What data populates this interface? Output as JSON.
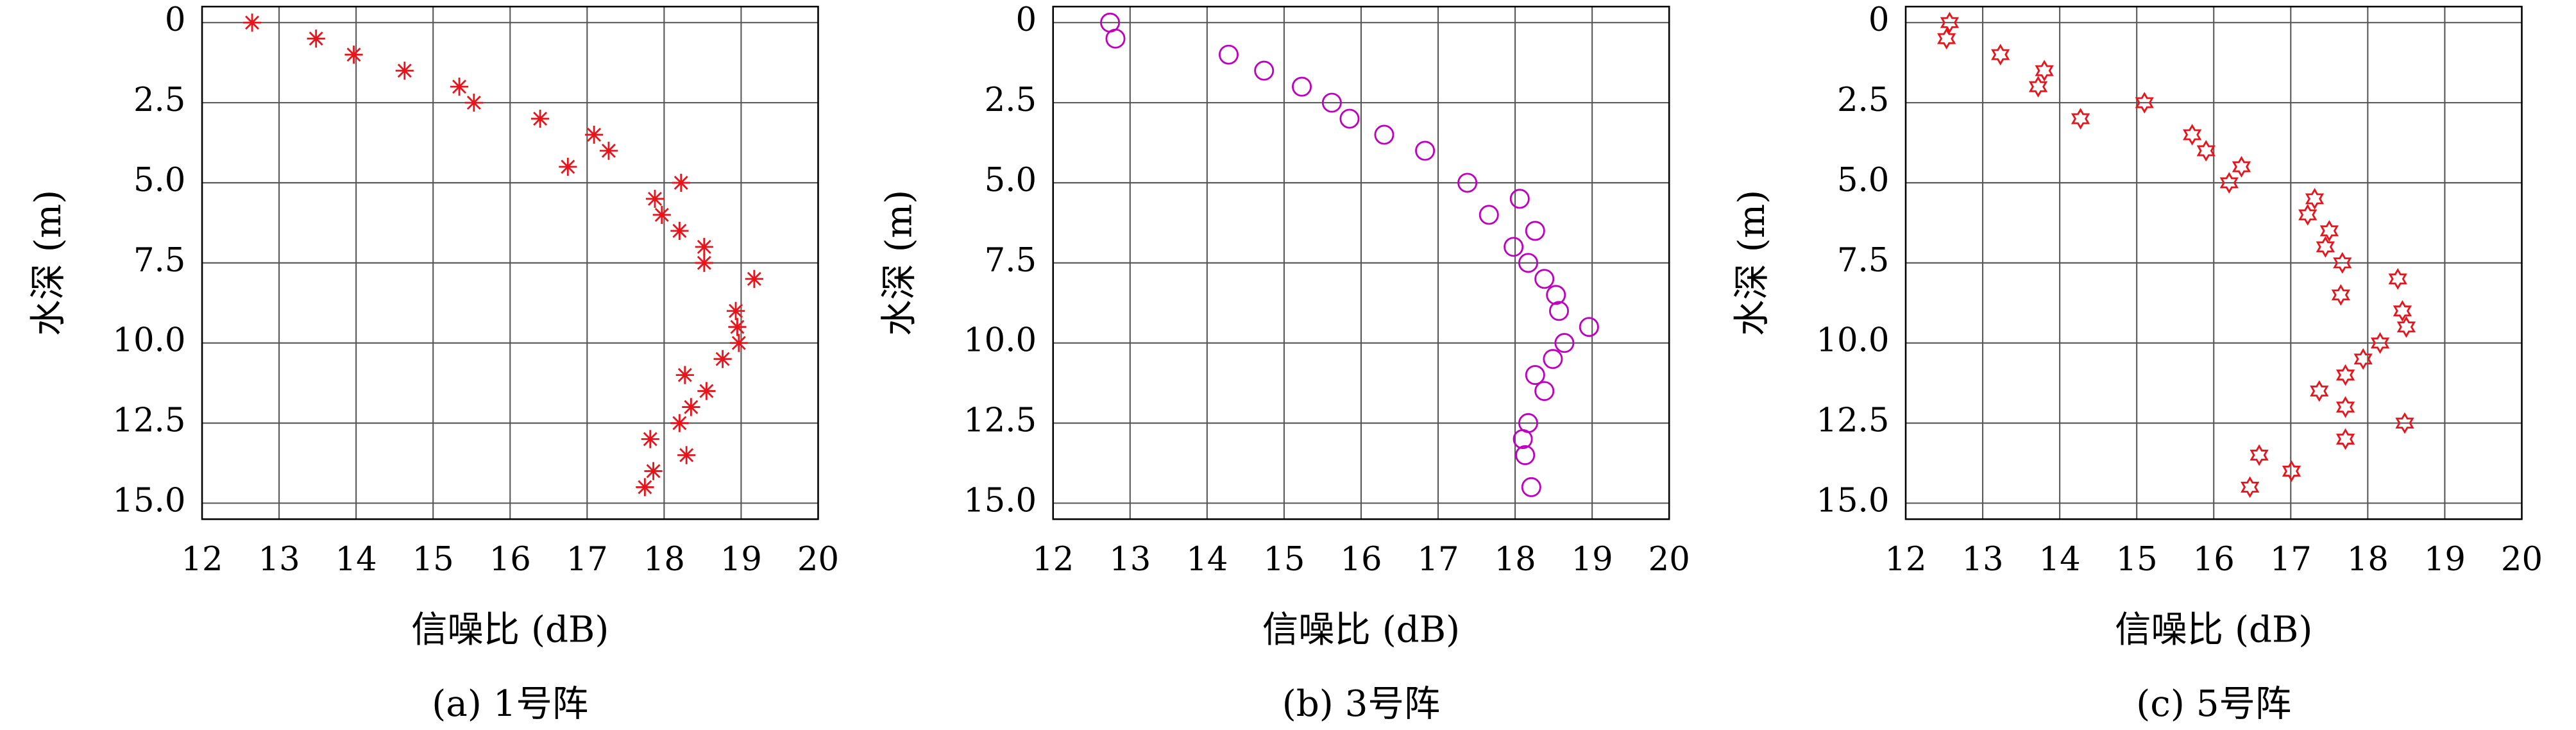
{
  "chart_data": [
    {
      "type": "scatter",
      "caption": "(a) 1号阵",
      "xlabel": "信噪比 (dB)",
      "ylabel": "水深 (m)",
      "marker": "asterisk",
      "color": "#e8141c",
      "x": [
        12.65,
        13.48,
        13.97,
        14.63,
        15.34,
        15.53,
        16.39,
        17.09,
        17.28,
        16.75,
        18.22,
        17.88,
        17.97,
        18.2,
        18.52,
        18.52,
        19.17,
        18.93,
        18.95,
        18.97,
        18.76,
        18.27,
        18.55,
        18.35,
        18.2,
        17.82,
        18.29,
        17.86,
        17.75
      ],
      "values": [
        0,
        0.5,
        1.0,
        1.5,
        2.0,
        2.5,
        3.0,
        3.5,
        4.0,
        4.5,
        5.0,
        5.5,
        6.0,
        6.5,
        7.0,
        7.5,
        8.0,
        9.0,
        9.5,
        10.0,
        10.5,
        11.0,
        11.5,
        12.0,
        12.5,
        13.0,
        13.5,
        14.0,
        14.5
      ],
      "xlim": [
        12,
        20
      ],
      "xticks": [
        12,
        13,
        14,
        15,
        16,
        17,
        18,
        19,
        20
      ],
      "ylim": [
        -0.5,
        15.5
      ],
      "y_reversed": true,
      "yticks": [
        0,
        2.5,
        {
          "value": 5,
          "label": "5.0"
        },
        7.5,
        {
          "value": 10,
          "label": "10.0"
        },
        12.5,
        {
          "value": 15,
          "label": "15.0"
        }
      ],
      "grid": true
    },
    {
      "type": "scatter",
      "caption": "(b) 3号阵",
      "xlabel": "信噪比 (dB)",
      "ylabel": "水深 (m)",
      "marker": "circle",
      "color": "#c000c0",
      "x": [
        12.74,
        12.81,
        14.28,
        14.74,
        15.23,
        15.62,
        15.85,
        16.3,
        16.83,
        17.38,
        18.06,
        17.66,
        18.26,
        17.98,
        18.17,
        18.38,
        18.53,
        18.57,
        18.96,
        18.64,
        18.49,
        18.26,
        18.38,
        18.17,
        18.1,
        18.13,
        18.21
      ],
      "values": [
        0,
        0.5,
        1.0,
        1.5,
        2.0,
        2.5,
        3.0,
        3.5,
        4.0,
        5.0,
        5.5,
        6.0,
        6.5,
        7.0,
        7.5,
        8.0,
        8.5,
        9.0,
        9.5,
        10.0,
        10.5,
        11.0,
        11.5,
        12.5,
        13.0,
        13.5,
        14.5
      ],
      "xlim": [
        12,
        20
      ],
      "xticks": [
        12,
        13,
        14,
        15,
        16,
        17,
        18,
        19,
        20
      ],
      "ylim": [
        -0.5,
        15.5
      ],
      "y_reversed": true,
      "yticks": [
        0,
        2.5,
        {
          "value": 5,
          "label": "5.0"
        },
        7.5,
        {
          "value": 10,
          "label": "10.0"
        },
        12.5,
        {
          "value": 15,
          "label": "15.0"
        }
      ],
      "grid": true
    },
    {
      "type": "scatter",
      "caption": "(c) 5号阵",
      "xlabel": "信噪比 (dB)",
      "ylabel": "水深 (m)",
      "marker": "hexagram",
      "color": "#e8141c",
      "x": [
        12.57,
        12.53,
        13.23,
        13.8,
        13.72,
        15.1,
        14.27,
        15.72,
        15.9,
        16.36,
        16.2,
        17.31,
        17.22,
        17.5,
        17.45,
        17.67,
        18.39,
        17.65,
        18.45,
        18.5,
        18.16,
        17.94,
        17.71,
        17.37,
        17.71,
        18.48,
        17.71,
        16.59,
        17.01,
        16.47
      ],
      "values": [
        0,
        0.5,
        1.0,
        1.5,
        2.0,
        2.5,
        3.0,
        3.5,
        4.0,
        4.5,
        5.0,
        5.5,
        6.0,
        6.5,
        7.0,
        7.5,
        8.0,
        8.5,
        9.0,
        9.5,
        10.0,
        10.5,
        11.0,
        11.5,
        12.0,
        12.5,
        13.0,
        13.5,
        14.0,
        14.5
      ],
      "xlim": [
        12,
        20
      ],
      "xticks": [
        12,
        13,
        14,
        15,
        16,
        17,
        18,
        19,
        20
      ],
      "ylim": [
        -0.5,
        15.5
      ],
      "y_reversed": true,
      "yticks": [
        0,
        2.5,
        {
          "value": 5,
          "label": "5.0"
        },
        7.5,
        {
          "value": 10,
          "label": "10.0"
        },
        12.5,
        {
          "value": 15,
          "label": "15.0"
        }
      ],
      "grid": true
    }
  ]
}
